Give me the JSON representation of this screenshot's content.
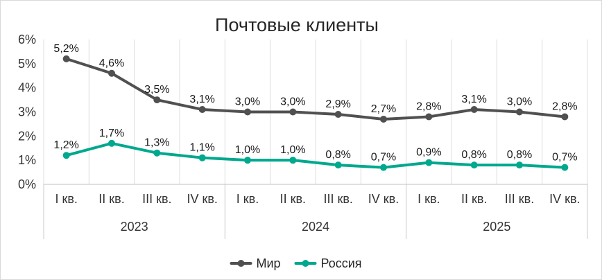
{
  "chart_data": {
    "type": "line",
    "title": "Почтовые клиенты",
    "categories": [
      "I кв.",
      "II кв.",
      "III кв.",
      "IV кв.",
      "I кв.",
      "II кв.",
      "III кв.",
      "IV кв.",
      "I кв.",
      "II кв.",
      "III кв.",
      "IV кв."
    ],
    "groups": [
      {
        "label": "2023",
        "size": 4
      },
      {
        "label": "2024",
        "size": 4
      },
      {
        "label": "2025",
        "size": 4
      }
    ],
    "y_ticks": [
      "0%",
      "1%",
      "2%",
      "3%",
      "4%",
      "5%",
      "6%"
    ],
    "ylim": [
      0,
      6
    ],
    "grid": "vertical",
    "legend": "bottom",
    "series": [
      {
        "name": "Мир",
        "color": "#505050",
        "values": [
          5.2,
          4.6,
          3.5,
          3.1,
          3.0,
          3.0,
          2.9,
          2.7,
          2.8,
          3.1,
          3.0,
          2.8
        ],
        "labels": [
          "5,2%",
          "4,6%",
          "3,5%",
          "3,1%",
          "3,0%",
          "3,0%",
          "2,9%",
          "2,7%",
          "2,8%",
          "3,1%",
          "3,0%",
          "2,8%"
        ]
      },
      {
        "name": "Россия",
        "color": "#00a88e",
        "values": [
          1.2,
          1.7,
          1.3,
          1.1,
          1.0,
          1.0,
          0.8,
          0.7,
          0.9,
          0.8,
          0.8,
          0.7
        ],
        "labels": [
          "1,2%",
          "1,7%",
          "1,3%",
          "1,1%",
          "1,0%",
          "1,0%",
          "0,8%",
          "0,7%",
          "0,9%",
          "0,8%",
          "0,8%",
          "0,7%"
        ]
      }
    ]
  }
}
